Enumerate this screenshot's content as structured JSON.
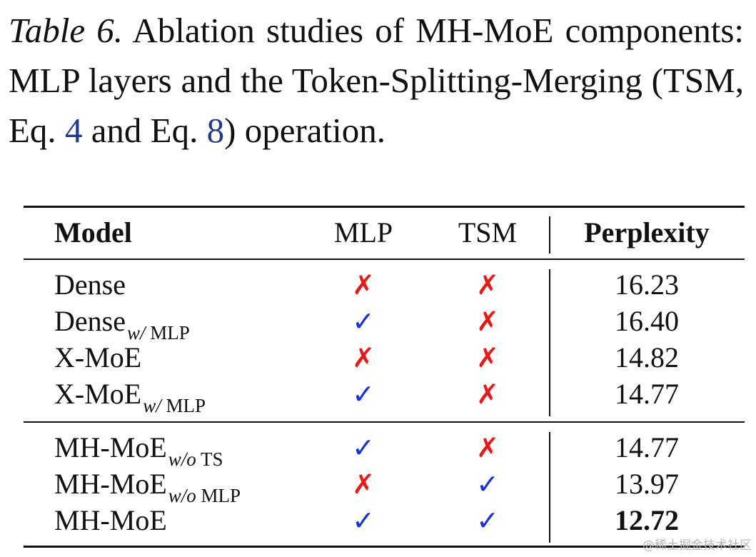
{
  "caption": {
    "label": "Table 6.",
    "text_before_ref1": " Ablation studies of MH-MoE components: MLP layers and the Token-Splitting-Merging (TSM, Eq. ",
    "ref1": "4",
    "text_between_refs": " and Eq. ",
    "ref2": "8",
    "text_after_ref2": ") operation."
  },
  "table": {
    "headers": {
      "model": "Model",
      "mlp": "MLP",
      "tsm": "TSM",
      "perplexity": "Perplexity"
    },
    "symbols": {
      "check": "✓",
      "cross": "✗"
    },
    "groups": [
      [
        {
          "model": "Dense",
          "subscript": "",
          "mlp": false,
          "tsm": false,
          "perplexity": "16.23",
          "bold": false
        },
        {
          "model": "Dense",
          "subscript": "w/ MLP",
          "mlp": true,
          "tsm": false,
          "perplexity": "16.40",
          "bold": false
        },
        {
          "model": "X-MoE",
          "subscript": "",
          "mlp": false,
          "tsm": false,
          "perplexity": "14.82",
          "bold": false
        },
        {
          "model": "X-MoE",
          "subscript": "w/ MLP",
          "mlp": true,
          "tsm": false,
          "perplexity": "14.77",
          "bold": false
        }
      ],
      [
        {
          "model": "MH-MoE",
          "subscript": "w/o TS",
          "mlp": true,
          "tsm": false,
          "perplexity": "14.77",
          "bold": false
        },
        {
          "model": "MH-MoE",
          "subscript": "w/o MLP",
          "mlp": false,
          "tsm": true,
          "perplexity": "13.97",
          "bold": false
        },
        {
          "model": "MH-MoE",
          "subscript": "",
          "mlp": true,
          "tsm": true,
          "perplexity": "12.72",
          "bold": true
        }
      ]
    ]
  },
  "colors": {
    "cross": "#e41b17",
    "check": "#1633d6",
    "ref": "#1f3a8f"
  },
  "watermark": "@稀土掘金技术社区"
}
